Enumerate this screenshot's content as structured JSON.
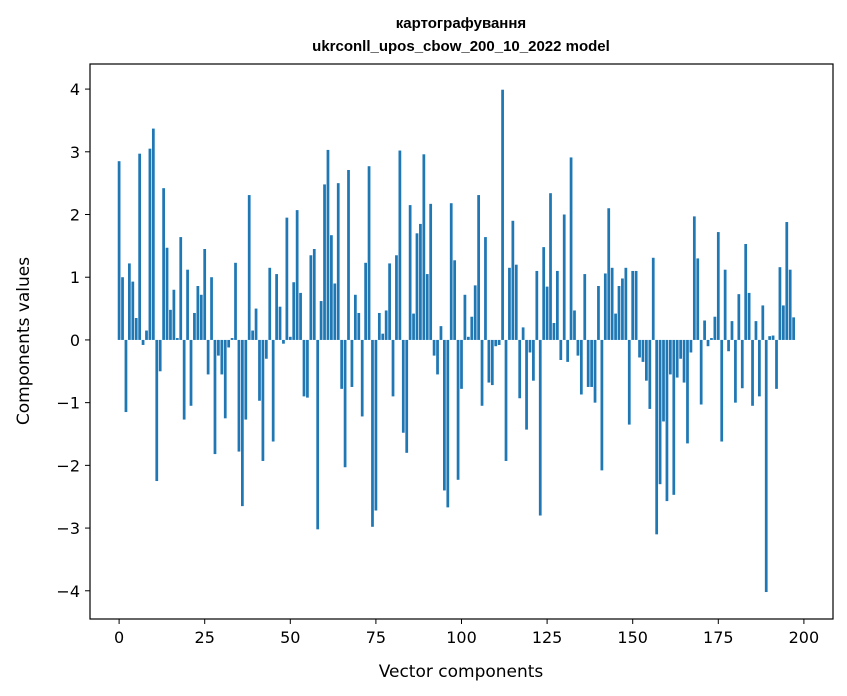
{
  "chart_data": {
    "type": "bar",
    "title": "картографування",
    "subtitle": "ukrconll_upos_cbow_200_10_2022 model",
    "xlabel": "Vector components",
    "ylabel": "Components values",
    "xlim": [
      -8.5,
      208.5
    ],
    "ylim": [
      -4.45,
      4.4
    ],
    "xticks": [
      0,
      25,
      50,
      75,
      100,
      125,
      150,
      175,
      200
    ],
    "yticks": [
      -4,
      -3,
      -2,
      -1,
      0,
      1,
      2,
      3,
      4
    ],
    "xtick_labels": [
      "0",
      "25",
      "50",
      "75",
      "100",
      "125",
      "150",
      "175",
      "200"
    ],
    "ytick_labels": [
      "−4",
      "−3",
      "−2",
      "−1",
      "0",
      "1",
      "2",
      "3",
      "4"
    ],
    "bar_color": "#1f77b4",
    "grid": false,
    "series": [
      {
        "values": [
          2.85,
          1.0,
          -1.15,
          1.22,
          0.93,
          0.35,
          2.97,
          -0.08,
          0.15,
          3.05,
          3.37,
          -2.25,
          -0.5,
          2.42,
          1.47,
          0.48,
          0.8,
          0.03,
          1.64,
          -1.27,
          1.12,
          -1.05,
          0.43,
          0.86,
          0.72,
          1.45,
          -0.55,
          1.0,
          -1.82,
          -0.25,
          -0.55,
          -1.25,
          -0.12,
          0.03,
          1.23,
          -1.78,
          -2.65,
          -1.27,
          2.31,
          0.15,
          0.5,
          -0.97,
          -1.93,
          -0.3,
          1.15,
          -1.62,
          1.05,
          0.53,
          -0.06,
          1.95,
          0.05,
          0.92,
          2.07,
          0.75,
          -0.9,
          -0.92,
          1.35,
          1.45,
          -3.02,
          0.62,
          2.48,
          3.03,
          1.67,
          0.9,
          2.5,
          -0.78,
          -2.03,
          2.71,
          -0.75,
          0.72,
          0.43,
          -1.22,
          1.23,
          2.77,
          -2.98,
          -2.72,
          0.43,
          0.1,
          0.47,
          1.22,
          -0.9,
          1.35,
          3.02,
          -1.48,
          -1.8,
          2.15,
          0.42,
          1.7,
          1.85,
          2.96,
          1.05,
          2.17,
          -0.25,
          -0.55,
          0.22,
          -2.4,
          -2.67,
          2.18,
          1.27,
          -2.23,
          -0.78,
          0.72,
          0.05,
          0.37,
          0.87,
          2.31,
          -1.05,
          1.64,
          -0.68,
          -0.72,
          -0.1,
          -0.08,
          3.99,
          -1.93,
          1.15,
          1.9,
          1.2,
          -0.93,
          0.2,
          -1.43,
          -0.2,
          -0.65,
          1.1,
          -2.8,
          1.48,
          0.85,
          2.34,
          0.27,
          1.1,
          -0.32,
          2.0,
          -0.35,
          2.91,
          0.47,
          -0.25,
          -0.87,
          1.05,
          -0.75,
          -0.75,
          -1.0,
          0.86,
          -2.08,
          1.06,
          2.1,
          1.15,
          0.42,
          0.86,
          0.98,
          1.15,
          -1.35,
          1.1,
          1.1,
          -0.28,
          -0.35,
          -0.65,
          -1.1,
          1.31,
          -3.1,
          -2.3,
          -1.3,
          -2.57,
          -0.55,
          -2.47,
          -0.6,
          -0.3,
          -0.68,
          -1.65,
          -0.2,
          1.97,
          1.3,
          -1.03,
          0.31,
          -0.1,
          0.03,
          0.37,
          1.72,
          -1.62,
          1.12,
          -0.18,
          0.3,
          -1.0,
          0.73,
          -0.77,
          1.53,
          0.75,
          -1.05,
          0.3,
          -0.9,
          0.55,
          -4.02,
          0.06,
          0.07,
          -0.78,
          1.16,
          0.55,
          1.88,
          1.12,
          0.36
        ]
      }
    ]
  }
}
